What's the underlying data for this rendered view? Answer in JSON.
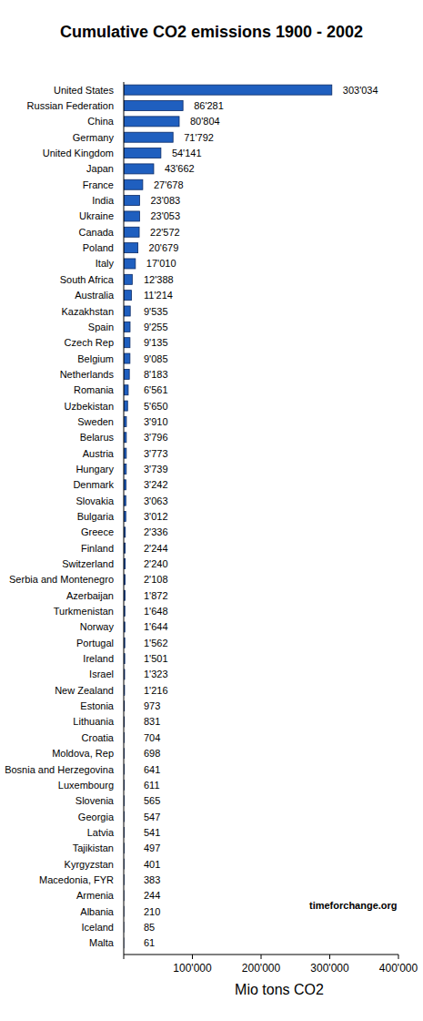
{
  "chart_data": {
    "type": "bar",
    "orientation": "horizontal",
    "title": "Cumulative CO2 emissions 1900 - 2002",
    "xlabel": "Mio tons CO2",
    "annotations": [
      "timeforchange.org"
    ],
    "categories": [
      "United States",
      "Russian Federation",
      "China",
      "Germany",
      "United Kingdom",
      "Japan",
      "France",
      "India",
      "Ukraine",
      "Canada",
      "Poland",
      "Italy",
      "South Africa",
      "Australia",
      "Kazakhstan",
      "Spain",
      "Czech Rep",
      "Belgium",
      "Netherlands",
      "Romania",
      "Uzbekistan",
      "Sweden",
      "Belarus",
      "Austria",
      "Hungary",
      "Denmark",
      "Slovakia",
      "Bulgaria",
      "Greece",
      "Finland",
      "Switzerland",
      "Serbia and Montenegro",
      "Azerbaijan",
      "Turkmenistan",
      "Norway",
      "Portugal",
      "Ireland",
      "Israel",
      "New Zealand",
      "Estonia",
      "Lithuania",
      "Croatia",
      "Moldova, Rep",
      "Bosnia and Herzegovina",
      "Luxembourg",
      "Slovenia",
      "Georgia",
      "Latvia",
      "Tajikistan",
      "Kyrgyzstan",
      "Macedonia, FYR",
      "Armenia",
      "Albania",
      "Iceland",
      "Malta"
    ],
    "values": [
      303034,
      86281,
      80804,
      71792,
      54141,
      43662,
      27678,
      23083,
      23053,
      22572,
      20679,
      17010,
      12388,
      11214,
      9535,
      9255,
      9135,
      9085,
      8183,
      6561,
      5650,
      3910,
      3796,
      3773,
      3739,
      3242,
      3063,
      3012,
      2336,
      2244,
      2240,
      2108,
      1872,
      1648,
      1644,
      1562,
      1501,
      1323,
      1216,
      973,
      831,
      704,
      698,
      641,
      611,
      565,
      547,
      541,
      497,
      401,
      383,
      244,
      210,
      85,
      61
    ],
    "value_labels": [
      "303'034",
      "86'281",
      "80'804",
      "71'792",
      "54'141",
      "43'662",
      "27'678",
      "23'083",
      "23'053",
      "22'572",
      "20'679",
      "17'010",
      "12'388",
      "11'214",
      "9'535",
      "9'255",
      "9'135",
      "9'085",
      "8'183",
      "6'561",
      "5'650",
      "3'910",
      "3'796",
      "3'773",
      "3'739",
      "3'242",
      "3'063",
      "3'012",
      "2'336",
      "2'244",
      "2'240",
      "2'108",
      "1'872",
      "1'648",
      "1'644",
      "1'562",
      "1'501",
      "1'323",
      "1'216",
      "973",
      "831",
      "704",
      "698",
      "641",
      "611",
      "565",
      "547",
      "541",
      "497",
      "401",
      "383",
      "244",
      "210",
      "85",
      "61"
    ],
    "data_labels": true,
    "color": "#1f5fbf",
    "xlim": [
      0,
      400000
    ],
    "xticks": [
      {
        "value": 100000,
        "label": "100'000"
      },
      {
        "value": 200000,
        "label": "200'000"
      },
      {
        "value": 300000,
        "label": "300'000"
      },
      {
        "value": 400000,
        "label": "400'000"
      }
    ],
    "grid": false
  }
}
